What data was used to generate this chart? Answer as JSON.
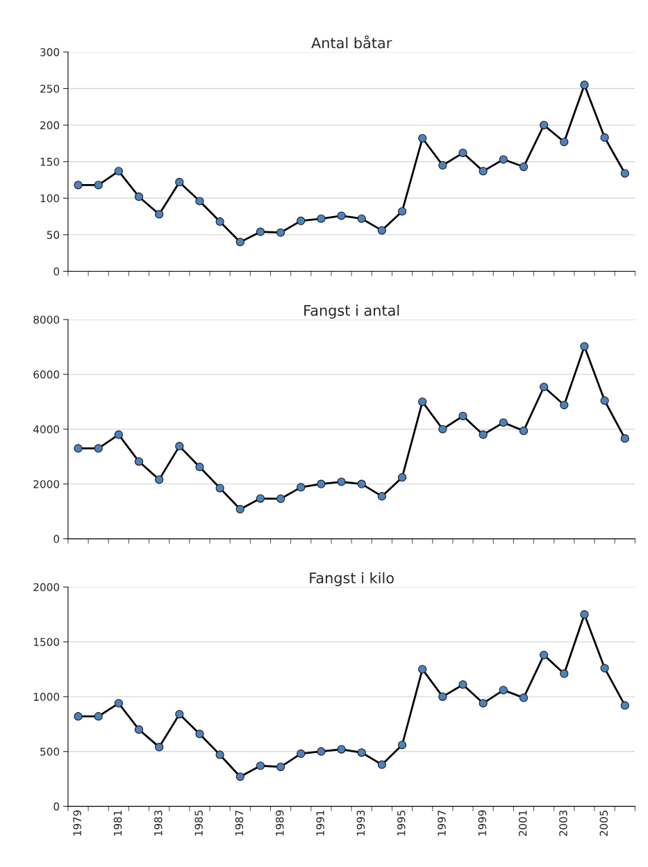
{
  "chart_data": [
    {
      "type": "line",
      "title": "Antal båtar",
      "categories": [
        "1979",
        null,
        "1981",
        null,
        "1983",
        null,
        "1985",
        null,
        "1987",
        null,
        "1989",
        null,
        "1991",
        null,
        "1993",
        null,
        "1995",
        null,
        "1997",
        null,
        "1999",
        null,
        "2001",
        null,
        "2003",
        null,
        "2005",
        null
      ],
      "series": [
        {
          "color": "#4f81bd",
          "values": [
            118,
            118,
            137,
            102,
            78,
            122,
            96,
            68,
            40,
            54,
            53,
            69,
            72,
            76,
            72,
            56,
            82,
            182,
            145,
            162,
            137,
            153,
            143,
            200,
            177,
            255,
            183,
            134
          ]
        }
      ],
      "ylim": [
        0,
        300
      ],
      "yticks": [
        0,
        50,
        100,
        150,
        200,
        250,
        300
      ],
      "grid": "y",
      "marker": "circle",
      "line_style": "solid",
      "tick_labels": "y"
    },
    {
      "type": "line",
      "title": "Fangst i antal",
      "categories": [
        "1979",
        null,
        "1981",
        null,
        "1983",
        null,
        "1985",
        null,
        "1987",
        null,
        "1989",
        null,
        "1991",
        null,
        "1993",
        null,
        "1995",
        null,
        "1997",
        null,
        "1999",
        null,
        "2001",
        null,
        "2003",
        null,
        "2005",
        null
      ],
      "series": [
        {
          "color": "#4f81bd",
          "values": [
            3300,
            3300,
            3800,
            2820,
            2160,
            3380,
            2620,
            1850,
            1080,
            1470,
            1460,
            1880,
            2000,
            2080,
            2000,
            1550,
            2240,
            5000,
            4000,
            4480,
            3800,
            4240,
            3940,
            5540,
            4880,
            7020,
            5040,
            3660
          ]
        }
      ],
      "ylim": [
        0,
        8000
      ],
      "yticks": [
        0,
        2000,
        4000,
        6000,
        8000
      ],
      "grid": "y",
      "marker": "circle",
      "line_style": "solid",
      "tick_labels": "y"
    },
    {
      "type": "line",
      "title": "Fangst i kilo",
      "categories": [
        "1979",
        null,
        "1981",
        null,
        "1983",
        null,
        "1985",
        null,
        "1987",
        null,
        "1989",
        null,
        "1991",
        null,
        "1993",
        null,
        "1995",
        null,
        "1997",
        null,
        "1999",
        null,
        "2001",
        null,
        "2003",
        null,
        "2005",
        null
      ],
      "series": [
        {
          "color": "#4f81bd",
          "values": [
            820,
            820,
            940,
            700,
            540,
            840,
            660,
            470,
            270,
            370,
            360,
            480,
            500,
            520,
            490,
            380,
            560,
            1250,
            1000,
            1110,
            940,
            1060,
            990,
            1380,
            1210,
            1750,
            1260,
            920
          ]
        }
      ],
      "ylim": [
        0,
        2000
      ],
      "yticks": [
        0,
        500,
        1000,
        1500,
        2000
      ],
      "grid": "y",
      "marker": "circle",
      "line_style": "solid"
    }
  ]
}
